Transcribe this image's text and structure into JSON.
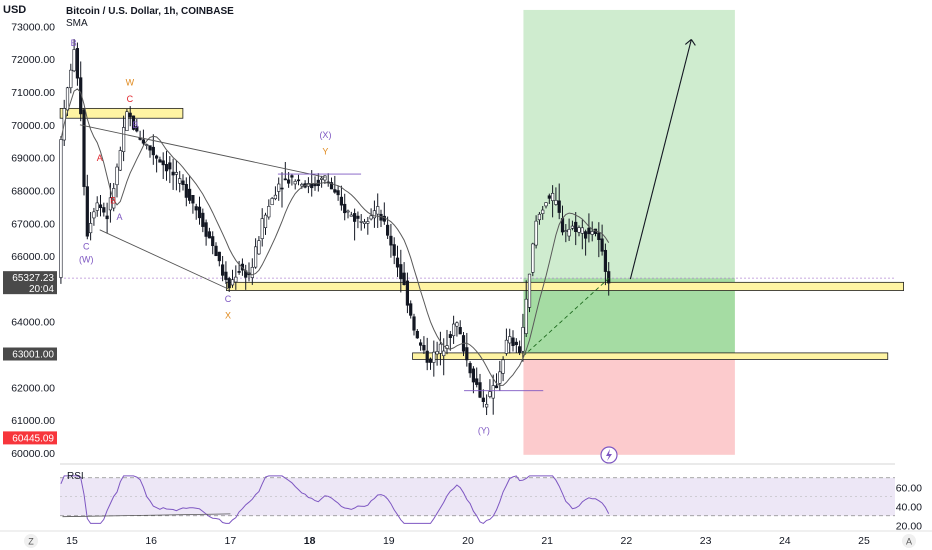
{
  "header": {
    "currency": "USD",
    "symbol_title": "Bitcoin / U.S. Dollar, 1h, COINBASE",
    "indicator": "SMA"
  },
  "colors": {
    "bull": "#131722",
    "bear": "#131722",
    "sma": "#5a5a5a",
    "target_zone": "#cfeccf",
    "target_zone_dark": "#a5dca3",
    "stop_zone": "#fccbcd",
    "support_band": "#fff4a3",
    "support_border": "#1f1f1f",
    "rsi_line": "#7e57c2",
    "rsi_band": "#ede7f6",
    "price_badge": "#4a4a4a",
    "stop_badge": "#f7353b",
    "wave_purple": "#7e57c2",
    "wave_orange": "#e08a1e",
    "wave_red": "#e0262e"
  },
  "price_axis": {
    "ticks": [
      "73000.00",
      "72000.00",
      "71000.00",
      "70000.00",
      "69000.00",
      "68000.00",
      "67000.00",
      "66000.00",
      "64000.00",
      "62000.00",
      "61000.00",
      "60000.00"
    ],
    "current_price": "65327.23",
    "countdown": "20:04",
    "entry_label": "63001.00",
    "stop_label": "60445.09"
  },
  "time_axis": {
    "ticks": [
      "15",
      "16",
      "17",
      "18",
      "19",
      "20",
      "21",
      "22",
      "23",
      "24",
      "25"
    ],
    "bold_tick": "18"
  },
  "rsi": {
    "label": "RSI",
    "ticks": [
      "60.00",
      "40.00",
      "20.00"
    ]
  },
  "wave_labels": [
    {
      "text": "B",
      "color": "purple"
    },
    {
      "text": "W",
      "color": "orange"
    },
    {
      "text": "C",
      "color": "red"
    },
    {
      "text": "B",
      "color": "purple"
    },
    {
      "text": "A",
      "color": "red"
    },
    {
      "text": "B",
      "color": "red"
    },
    {
      "text": "A",
      "color": "purple"
    },
    {
      "text": "C",
      "color": "purple"
    },
    {
      "text": "(W)",
      "color": "purple"
    },
    {
      "text": "(X)",
      "color": "purple"
    },
    {
      "text": "Y",
      "color": "orange"
    },
    {
      "text": "C",
      "color": "purple"
    },
    {
      "text": "X",
      "color": "orange"
    },
    {
      "text": "(Y)",
      "color": "purple"
    }
  ],
  "footer": {
    "left_button": "Z",
    "right_button": "A"
  },
  "chart_data": {
    "type": "candlestick",
    "title": "Bitcoin / U.S. Dollar, 1h, COINBASE",
    "ylim": [
      60000,
      73500
    ],
    "current_price": 65327.23,
    "entry": 63001.0,
    "stop": 60445.09,
    "target": 73500,
    "x_range_days": [
      14.8,
      25.5
    ],
    "support_zones": [
      {
        "x_days": [
          14.85,
          16.4
        ],
        "y": [
          70200,
          70500
        ]
      },
      {
        "x_days": [
          16.95,
          25.5
        ],
        "y": [
          64950,
          65200
        ]
      },
      {
        "x_days": [
          19.3,
          25.3
        ],
        "y": [
          62850,
          63050
        ]
      }
    ],
    "wave_points": [
      {
        "label": "B",
        "x": 15.02,
        "y": 72400
      },
      {
        "label": "W",
        "x": 15.73,
        "y": 71200
      },
      {
        "label": "C",
        "x": 15.73,
        "y": 70700
      },
      {
        "label": "B",
        "x": 15.8,
        "y": 69900
      },
      {
        "label": "A",
        "x": 15.35,
        "y": 68900
      },
      {
        "label": "B",
        "x": 15.52,
        "y": 67600
      },
      {
        "label": "A",
        "x": 15.6,
        "y": 67100
      },
      {
        "label": "C",
        "x": 15.18,
        "y": 66200
      },
      {
        "label": "(W)",
        "x": 15.18,
        "y": 65800
      },
      {
        "label": "(X)",
        "x": 18.2,
        "y": 69600
      },
      {
        "label": "Y",
        "x": 18.2,
        "y": 69100
      },
      {
        "label": "C",
        "x": 16.97,
        "y": 64600
      },
      {
        "label": "X",
        "x": 16.97,
        "y": 64100
      },
      {
        "label": "(Y)",
        "x": 20.2,
        "y": 60600
      }
    ],
    "rsi_range": [
      15,
      75
    ],
    "rsi_levels": [
      70,
      50,
      30
    ]
  }
}
